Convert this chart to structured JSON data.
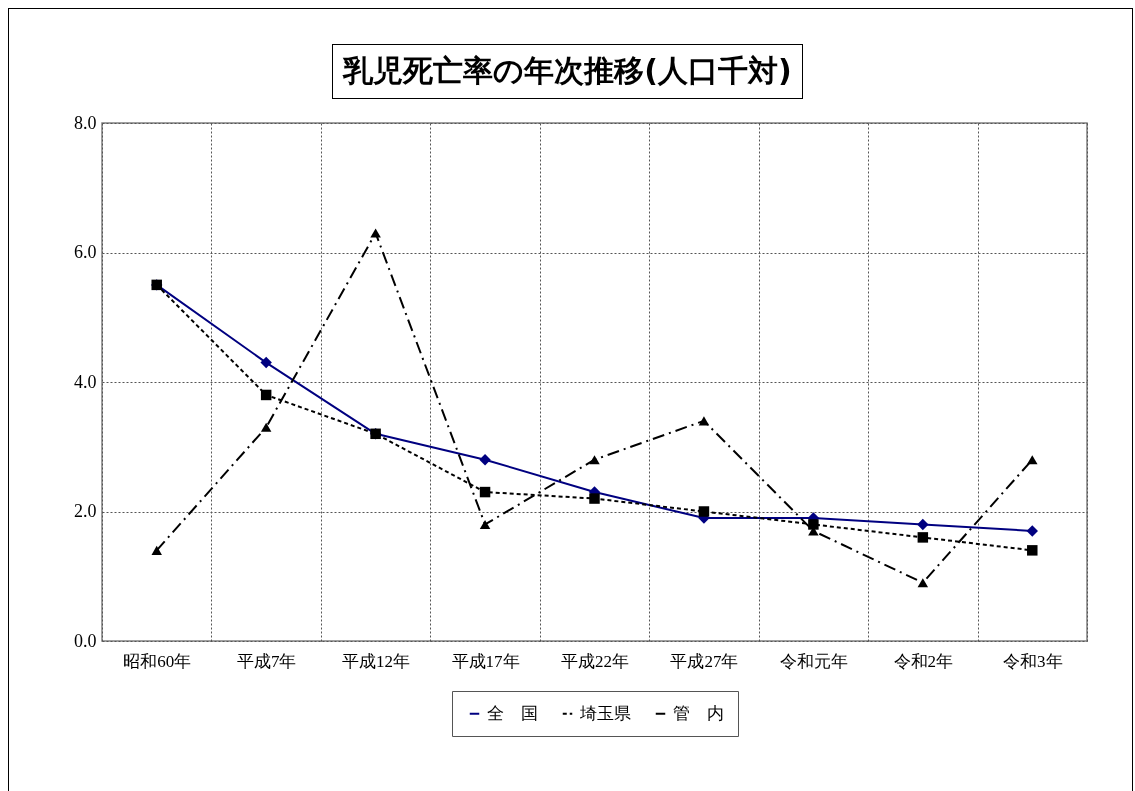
{
  "chart_data": {
    "type": "line",
    "title": "乳児死亡率の年次推移(人口千対)",
    "categories": [
      "昭和60年",
      "平成7年",
      "平成12年",
      "平成17年",
      "平成22年",
      "平成27年",
      "令和元年",
      "令和2年",
      "令和3年"
    ],
    "series": [
      {
        "name": "全　国",
        "color": "#000080",
        "marker": "diamond",
        "line_style": "solid",
        "values": [
          5.5,
          4.3,
          3.2,
          2.8,
          2.3,
          1.9,
          1.9,
          1.8,
          1.7
        ]
      },
      {
        "name": "埼玉県",
        "color": "#000000",
        "marker": "square",
        "line_style": "dotted",
        "values": [
          5.5,
          3.8,
          3.2,
          2.3,
          2.2,
          2.0,
          1.8,
          1.6,
          1.4
        ]
      },
      {
        "name": "管　内",
        "color": "#000000",
        "marker": "triangle",
        "line_style": "dashed",
        "values": [
          1.4,
          3.3,
          6.3,
          1.8,
          2.8,
          3.4,
          1.7,
          0.9,
          2.8
        ]
      }
    ],
    "ylim": [
      0,
      8
    ],
    "yticks": [
      {
        "value": 0,
        "label": "0.0"
      },
      {
        "value": 2,
        "label": "2.0"
      },
      {
        "value": 4,
        "label": "4.0"
      },
      {
        "value": 6,
        "label": "6.0"
      },
      {
        "value": 8,
        "label": "8.0"
      }
    ],
    "grid": true,
    "legend": "bottom"
  }
}
